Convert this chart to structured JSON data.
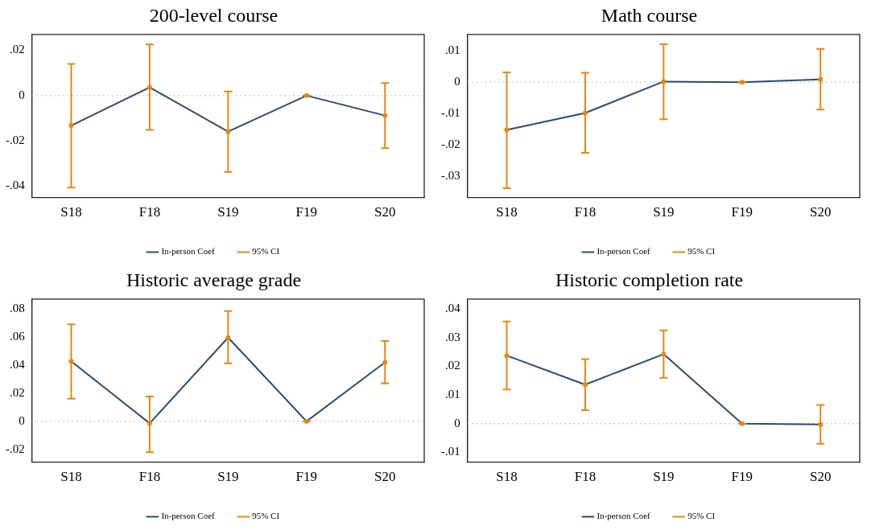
{
  "chart_data": [
    {
      "type": "line",
      "title": "200-level course",
      "categories": [
        "S18",
        "F18",
        "S19",
        "F19",
        "S20"
      ],
      "ylim": [
        -0.045,
        0.027
      ],
      "yticks": [
        {
          "value": -0.04,
          "label": "-.04"
        },
        {
          "value": -0.02,
          "label": "-.02"
        },
        {
          "value": 0,
          "label": "0"
        },
        {
          "value": 0.02,
          "label": ".02"
        }
      ],
      "grid": false,
      "legend": "bottom",
      "ref_lines": [
        {
          "axis": "y",
          "value": 0,
          "color": "#bbbbbb",
          "line_style": "dotted"
        }
      ],
      "series": [
        {
          "name": "In-person Coef",
          "color": "#2b4d6e",
          "values": [
            -0.0132,
            0.0036,
            -0.0159,
            0,
            -0.0088
          ]
        },
        {
          "name": "95% CI",
          "type": "scatter",
          "marker": "circle",
          "color": "#e8870e",
          "values": [
            -0.0132,
            0.0036,
            -0.0159,
            0,
            -0.0088
          ],
          "errors": [
            [
              -0.0406,
              0.014
            ],
            [
              -0.0151,
              0.0226
            ],
            [
              -0.0337,
              0.0018
            ],
            [
              0,
              0
            ],
            [
              -0.0232,
              0.0055
            ]
          ]
        }
      ]
    },
    {
      "type": "line",
      "title": "Math course",
      "categories": [
        "S18",
        "F18",
        "S19",
        "F19",
        "S20"
      ],
      "ylim": [
        -0.0367,
        0.0152
      ],
      "yticks": [
        {
          "value": -0.03,
          "label": "-.03"
        },
        {
          "value": -0.02,
          "label": "-.02"
        },
        {
          "value": -0.01,
          "label": "-.01"
        },
        {
          "value": 0,
          "label": "0"
        },
        {
          "value": 0.01,
          "label": ".01"
        }
      ],
      "grid": false,
      "legend": "bottom",
      "ref_lines": [
        {
          "axis": "y",
          "value": 0,
          "color": "#bbbbbb",
          "line_style": "dotted"
        }
      ],
      "series": [
        {
          "name": "In-person Coef",
          "color": "#2b4d6e",
          "values": [
            -0.0152,
            -0.0098,
            0.0002,
            0,
            0.0009
          ]
        },
        {
          "name": "95% CI",
          "type": "scatter",
          "marker": "circle",
          "color": "#e8870e",
          "values": [
            -0.0152,
            -0.0098,
            0.0002,
            0,
            0.0009
          ],
          "errors": [
            [
              -0.0337,
              0.0031
            ],
            [
              -0.0225,
              0.003
            ],
            [
              -0.0118,
              0.0121
            ],
            [
              0,
              0
            ],
            [
              -0.0087,
              0.0106
            ]
          ]
        }
      ]
    },
    {
      "type": "line",
      "title": "Historic average grade",
      "categories": [
        "S18",
        "F18",
        "S19",
        "F19",
        "S20"
      ],
      "ylim": [
        -0.029,
        0.087
      ],
      "yticks": [
        {
          "value": -0.02,
          "label": "-.02"
        },
        {
          "value": 0,
          "label": "0"
        },
        {
          "value": 0.02,
          "label": ".02"
        },
        {
          "value": 0.04,
          "label": ".04"
        },
        {
          "value": 0.06,
          "label": ".06"
        },
        {
          "value": 0.08,
          "label": ".08"
        }
      ],
      "grid": false,
      "legend": "bottom",
      "ref_lines": [
        {
          "axis": "y",
          "value": 0,
          "color": "#bbbbbb",
          "line_style": "dotted"
        }
      ],
      "series": [
        {
          "name": "In-person Coef",
          "color": "#2b4d6e",
          "values": [
            0.0427,
            -0.0014,
            0.0596,
            0,
            0.042
          ]
        },
        {
          "name": "95% CI",
          "type": "scatter",
          "marker": "circle",
          "color": "#e8870e",
          "values": [
            0.0427,
            -0.0014,
            0.0596,
            0,
            0.042
          ],
          "errors": [
            [
              0.0161,
              0.069
            ],
            [
              -0.0219,
              0.0177
            ],
            [
              0.0412,
              0.0784
            ],
            [
              0,
              0
            ],
            [
              0.027,
              0.0571
            ]
          ]
        }
      ]
    },
    {
      "type": "line",
      "title": "Historic completion rate",
      "categories": [
        "S18",
        "F18",
        "S19",
        "F19",
        "S20"
      ],
      "ylim": [
        -0.0134,
        0.0434
      ],
      "yticks": [
        {
          "value": -0.01,
          "label": "-.01"
        },
        {
          "value": 0,
          "label": "0"
        },
        {
          "value": 0.01,
          "label": ".01"
        },
        {
          "value": 0.02,
          "label": ".02"
        },
        {
          "value": 0.03,
          "label": ".03"
        },
        {
          "value": 0.04,
          "label": ".04"
        }
      ],
      "grid": false,
      "legend": "bottom",
      "ref_lines": [
        {
          "axis": "y",
          "value": 0,
          "color": "#bbbbbb",
          "line_style": "dotted"
        }
      ],
      "series": [
        {
          "name": "In-person Coef",
          "color": "#2b4d6e",
          "values": [
            0.0237,
            0.0136,
            0.0242,
            0,
            -0.0003
          ]
        },
        {
          "name": "95% CI",
          "type": "scatter",
          "marker": "circle",
          "color": "#e8870e",
          "values": [
            0.0237,
            0.0136,
            0.0242,
            0,
            -0.0003
          ],
          "errors": [
            [
              0.0119,
              0.0356
            ],
            [
              0.0047,
              0.0225
            ],
            [
              0.016,
              0.0325
            ],
            [
              0,
              0
            ],
            [
              -0.007,
              0.0065
            ]
          ]
        }
      ]
    }
  ]
}
